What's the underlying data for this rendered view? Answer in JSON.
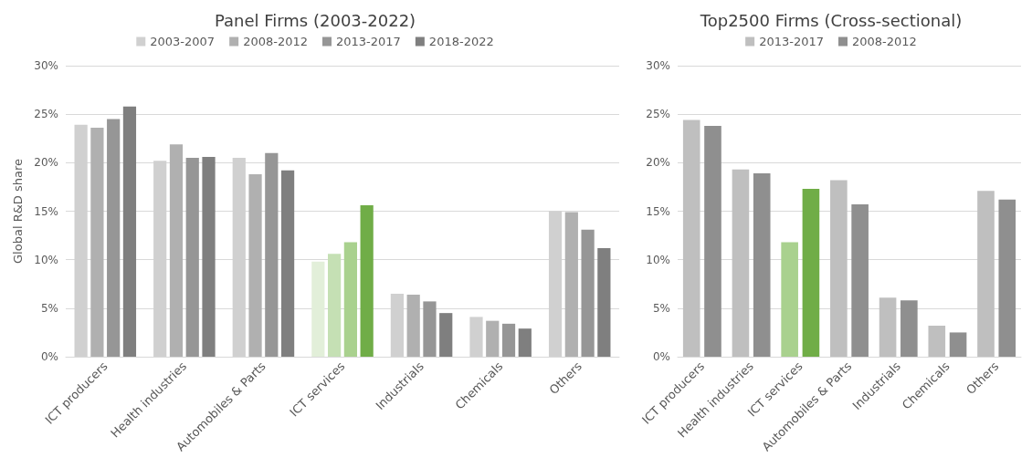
{
  "chart_data": [
    {
      "type": "bar",
      "title": "Panel Firms (2003-2022)",
      "ylabel": "Global R&D share",
      "categories": [
        "ICT producers",
        "Health industries",
        "Automobiles & Parts",
        "ICT services",
        "Industrials",
        "Chemicals",
        "Others"
      ],
      "ylim": [
        0,
        30
      ],
      "yticks": [
        {
          "value": 0,
          "label": "0%"
        },
        {
          "value": 5,
          "label": "5%"
        },
        {
          "value": 10,
          "label": "10%"
        },
        {
          "value": 15,
          "label": "15%"
        },
        {
          "value": 20,
          "label": "20%"
        },
        {
          "value": 25,
          "label": "25%"
        },
        {
          "value": 30,
          "label": "30%"
        }
      ],
      "grid": "y",
      "legend": "top",
      "series": [
        {
          "name": "2003-2007",
          "color": "#d0d0d0",
          "colors": [
            "#d0d0d0",
            "#d0d0d0",
            "#d0d0d0",
            "#e2efd9",
            "#d0d0d0",
            "#d0d0d0",
            "#d0d0d0"
          ],
          "values": [
            23.9,
            20.2,
            20.5,
            9.8,
            6.5,
            4.1,
            15.0
          ]
        },
        {
          "name": "2008-2012",
          "color": "#b0b0b0",
          "colors": [
            "#b0b0b0",
            "#b0b0b0",
            "#b0b0b0",
            "#c5e0b4",
            "#b0b0b0",
            "#b0b0b0",
            "#b0b0b0"
          ],
          "values": [
            23.6,
            21.9,
            18.8,
            10.6,
            6.4,
            3.7,
            14.9
          ]
        },
        {
          "name": "2013-2017",
          "color": "#969696",
          "colors": [
            "#969696",
            "#969696",
            "#969696",
            "#a9d18e",
            "#969696",
            "#969696",
            "#969696"
          ],
          "values": [
            24.5,
            20.5,
            21.0,
            11.8,
            5.7,
            3.4,
            13.1
          ]
        },
        {
          "name": "2018-2022",
          "color": "#7f7f7f",
          "colors": [
            "#7f7f7f",
            "#7f7f7f",
            "#7f7f7f",
            "#70ad47",
            "#7f7f7f",
            "#7f7f7f",
            "#7f7f7f"
          ],
          "values": [
            25.8,
            20.6,
            19.2,
            15.6,
            4.5,
            2.9,
            11.2
          ]
        }
      ]
    },
    {
      "type": "bar",
      "title": "Top2500 Firms (Cross-sectional)",
      "categories": [
        "ICT producers",
        "Health industries",
        "ICT services",
        "Automobiles & Parts",
        "Industrials",
        "Chemicals",
        "Others"
      ],
      "ylim": [
        0,
        30
      ],
      "yticks": [
        {
          "value": 0,
          "label": "0%"
        },
        {
          "value": 5,
          "label": "5%"
        },
        {
          "value": 10,
          "label": "10%"
        },
        {
          "value": 15,
          "label": "15%"
        },
        {
          "value": 20,
          "label": "20%"
        },
        {
          "value": 25,
          "label": "25%"
        },
        {
          "value": 30,
          "label": "30%"
        }
      ],
      "grid": "y",
      "legend": "top",
      "series": [
        {
          "name": "2013-2017",
          "color": "#bfbfbf",
          "colors": [
            "#bfbfbf",
            "#bfbfbf",
            "#a9d18e",
            "#bfbfbf",
            "#bfbfbf",
            "#bfbfbf",
            "#bfbfbf"
          ],
          "values": [
            24.4,
            19.3,
            11.8,
            18.2,
            6.1,
            3.2,
            17.1
          ]
        },
        {
          "name": "2008-2012",
          "color": "#8f8f8f",
          "colors": [
            "#8f8f8f",
            "#8f8f8f",
            "#70ad47",
            "#8f8f8f",
            "#8f8f8f",
            "#8f8f8f",
            "#8f8f8f"
          ],
          "values": [
            23.8,
            18.9,
            17.3,
            15.7,
            5.8,
            2.5,
            16.2
          ]
        }
      ]
    }
  ]
}
